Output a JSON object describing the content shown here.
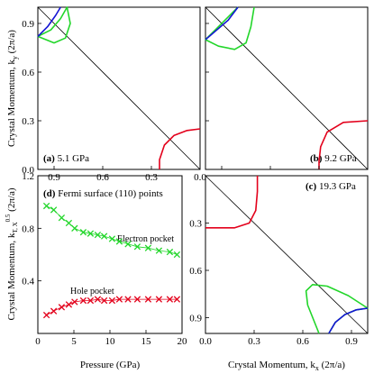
{
  "colors": {
    "red": "#e3001b",
    "green": "#22d62a",
    "blue": "#1414d4",
    "black": "#000000"
  },
  "labels": {
    "ylabel_top": "Crystal Momentum, k",
    "ylabel_top_sub": "y",
    "ylabel_top_unit": " (2π/a)",
    "ylabel_bottom": "Crystal Momentum, k",
    "ylabel_bottom_sub": "T, X",
    "ylabel_bottom_sup": "0.5",
    "ylabel_bottom_unit": " (2π/a)",
    "xlabel_bottom_right": "Crystal Momentum, k",
    "xlabel_bottom_right_sub": "x",
    "xlabel_bottom_right_unit": " (2π/a)",
    "xlabel_bottom_left": "Pressure (GPa)"
  },
  "chart_data": [
    {
      "id": "a",
      "type": "line",
      "label_letter": "(a)",
      "label_text": " 5.1 GPa",
      "x_ticks": [
        "0.9",
        "0.6",
        "0.3",
        "0.0"
      ],
      "y_ticks": [
        "0.0",
        "0.3",
        "0.6",
        "0.9"
      ],
      "xlim": [
        1.0,
        0.0
      ],
      "ylim": [
        0.0,
        1.0
      ],
      "series": [
        {
          "color": "red",
          "points": [
            [
              0.25,
              0.0
            ],
            [
              0.25,
              0.06
            ],
            [
              0.22,
              0.15
            ],
            [
              0.16,
              0.21
            ],
            [
              0.08,
              0.24
            ],
            [
              0.0,
              0.25
            ]
          ]
        },
        {
          "color": "green",
          "points": [
            [
              1.0,
              0.82
            ],
            [
              0.92,
              0.86
            ],
            [
              0.86,
              0.93
            ],
            [
              0.82,
              1.0
            ],
            [
              0.8,
              0.9
            ],
            [
              0.83,
              0.81
            ],
            [
              0.9,
              0.78
            ],
            [
              1.0,
              0.82
            ]
          ]
        },
        {
          "color": "blue",
          "points": [
            [
              1.0,
              0.82
            ],
            [
              0.94,
              0.88
            ],
            [
              0.89,
              0.95
            ],
            [
              0.86,
              1.0
            ]
          ]
        }
      ]
    },
    {
      "id": "b",
      "type": "line",
      "label_letter": "(b)",
      "label_text": " 9.2 GPa",
      "xlim": [
        1.0,
        0.0
      ],
      "ylim": [
        0.0,
        1.0
      ],
      "series": [
        {
          "color": "red",
          "points": [
            [
              0.0,
              0.3
            ],
            [
              0.15,
              0.29
            ],
            [
              0.25,
              0.23
            ],
            [
              0.29,
              0.14
            ],
            [
              0.3,
              0.05
            ],
            [
              0.3,
              0.0
            ]
          ]
        },
        {
          "color": "green",
          "points": [
            [
              0.7,
              1.0
            ],
            [
              0.72,
              0.88
            ],
            [
              0.75,
              0.78
            ],
            [
              0.82,
              0.74
            ],
            [
              0.92,
              0.76
            ],
            [
              1.0,
              0.8
            ],
            [
              0.93,
              0.87
            ],
            [
              0.86,
              0.94
            ],
            [
              0.8,
              1.0
            ]
          ]
        },
        {
          "color": "blue",
          "points": [
            [
              0.8,
              1.0
            ],
            [
              0.86,
              0.92
            ],
            [
              0.93,
              0.86
            ],
            [
              1.0,
              0.8
            ]
          ]
        }
      ]
    },
    {
      "id": "c",
      "type": "line",
      "label_letter": "(c)",
      "label_text": " 19.3 GPa",
      "x_ticks": [
        "0.0",
        "0.3",
        "0.6",
        "0.9"
      ],
      "y_ticks": [
        "0.3",
        "0.6",
        "0.9"
      ],
      "xlim": [
        0.0,
        1.0
      ],
      "ylim": [
        0.0,
        1.0
      ],
      "series": [
        {
          "color": "red",
          "points": [
            [
              0.0,
              0.33
            ],
            [
              0.18,
              0.33
            ],
            [
              0.27,
              0.3
            ],
            [
              0.31,
              0.22
            ],
            [
              0.32,
              0.1
            ],
            [
              0.32,
              0.0
            ]
          ]
        },
        {
          "color": "green",
          "points": [
            [
              0.7,
              1.0
            ],
            [
              0.63,
              0.82
            ],
            [
              0.62,
              0.73
            ],
            [
              0.66,
              0.69
            ],
            [
              0.75,
              0.7
            ],
            [
              0.88,
              0.76
            ],
            [
              1.0,
              0.84
            ],
            [
              0.93,
              0.85
            ],
            [
              0.86,
              0.88
            ],
            [
              0.8,
              0.93
            ],
            [
              0.76,
              1.0
            ]
          ]
        },
        {
          "color": "blue",
          "points": [
            [
              0.76,
              1.0
            ],
            [
              0.8,
              0.93
            ],
            [
              0.86,
              0.88
            ],
            [
              0.93,
              0.85
            ],
            [
              1.0,
              0.84
            ]
          ]
        }
      ]
    },
    {
      "id": "d",
      "type": "line",
      "title_letter": "(d)",
      "title_text": " Fermi surface (110) points",
      "x_ticks": [
        "0",
        "5",
        "10",
        "15",
        "20"
      ],
      "y_ticks": [
        "0.4",
        "0.8",
        "1.2"
      ],
      "xlim": [
        0,
        20
      ],
      "ylim": [
        0,
        1.2
      ],
      "series": [
        {
          "name": "Electron pocket",
          "color": "green",
          "x": [
            1.2,
            2.2,
            3.3,
            4.3,
            5.1,
            6.3,
            7.3,
            8.3,
            9.2,
            10.3,
            11.3,
            12.5,
            13.8,
            15.3,
            16.8,
            18.3,
            19.3
          ],
          "y": [
            0.97,
            0.94,
            0.88,
            0.84,
            0.8,
            0.77,
            0.76,
            0.75,
            0.74,
            0.72,
            0.7,
            0.68,
            0.66,
            0.65,
            0.63,
            0.62,
            0.6
          ]
        },
        {
          "name": "Hole pocket",
          "color": "red",
          "x": [
            1.2,
            2.2,
            3.3,
            4.3,
            5.1,
            6.3,
            7.3,
            8.3,
            9.2,
            10.3,
            11.3,
            12.5,
            13.8,
            15.3,
            16.8,
            18.3,
            19.3
          ],
          "y": [
            0.14,
            0.17,
            0.2,
            0.22,
            0.24,
            0.25,
            0.25,
            0.26,
            0.25,
            0.25,
            0.26,
            0.26,
            0.26,
            0.26,
            0.26,
            0.26,
            0.26
          ]
        }
      ]
    }
  ]
}
